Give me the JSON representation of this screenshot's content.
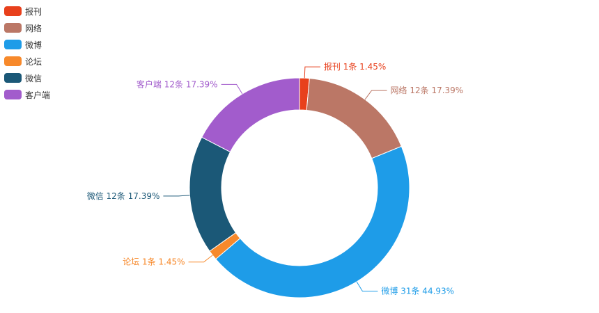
{
  "chart_data": {
    "type": "pie",
    "variant": "donut",
    "unit": "条",
    "legend_position": "top-left",
    "slices": [
      {
        "name": "报刊",
        "value": 1,
        "percent": "1.45%",
        "color": "#e8401c"
      },
      {
        "name": "网络",
        "value": 12,
        "percent": "17.39%",
        "color": "#bb7766"
      },
      {
        "name": "微博",
        "value": 31,
        "percent": "44.93%",
        "color": "#1e9ce8"
      },
      {
        "name": "论坛",
        "value": 1,
        "percent": "1.45%",
        "color": "#f7892b"
      },
      {
        "name": "微信",
        "value": 12,
        "percent": "17.39%",
        "color": "#1b5877"
      },
      {
        "name": "客户端",
        "value": 12,
        "percent": "17.39%",
        "color": "#a25ccc"
      }
    ]
  }
}
